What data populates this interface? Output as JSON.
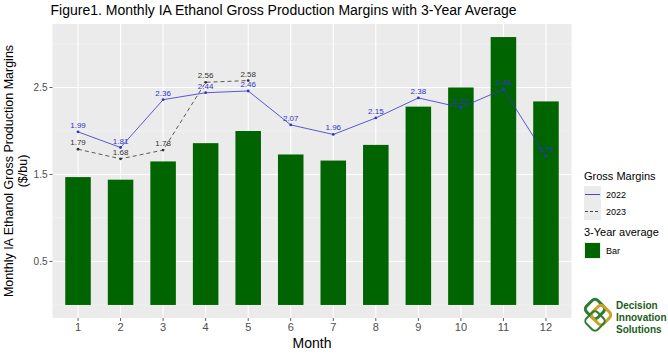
{
  "chart_data": {
    "type": "bar",
    "title": "Figure1. Monthly IA Ethanol Gross Production Margins with 3-Year Average",
    "x_label": "Month",
    "y_label": "Monthly IA Ethanol Gross Production Margins\n($/bu)",
    "categories": [
      "1",
      "2",
      "3",
      "4",
      "5",
      "6",
      "7",
      "8",
      "9",
      "10",
      "11",
      "12"
    ],
    "series": [
      {
        "name": "2022",
        "group": "Gross Margins",
        "type": "line",
        "color": "#3333cc",
        "line_style": "solid",
        "marker": "circle",
        "data_labels": true,
        "values": [
          1.99,
          1.81,
          2.36,
          2.44,
          2.46,
          2.07,
          1.96,
          2.15,
          2.38,
          2.27,
          2.48,
          1.71
        ]
      },
      {
        "name": "2023",
        "group": "Gross Margins",
        "type": "line",
        "color": "#333333",
        "line_style": "dashed",
        "marker": "circle",
        "data_labels": true,
        "values": [
          1.79,
          1.68,
          1.78,
          2.56,
          2.58,
          null,
          null,
          null,
          null,
          null,
          null,
          null
        ]
      },
      {
        "name": "Bar",
        "group": "3-Year average",
        "type": "bar",
        "color": "#006400",
        "data_labels": false,
        "values": [
          1.47,
          1.44,
          1.65,
          1.86,
          2.0,
          1.73,
          1.66,
          1.84,
          2.28,
          2.5,
          3.08,
          2.34
        ]
      }
    ],
    "ylim": [
      -0.15,
      3.23
    ],
    "yticks": [
      0.5,
      1.5,
      2.5
    ],
    "grid": true,
    "legend": "right",
    "logo": [
      "Decision",
      "Innovation",
      "Solutions"
    ]
  }
}
